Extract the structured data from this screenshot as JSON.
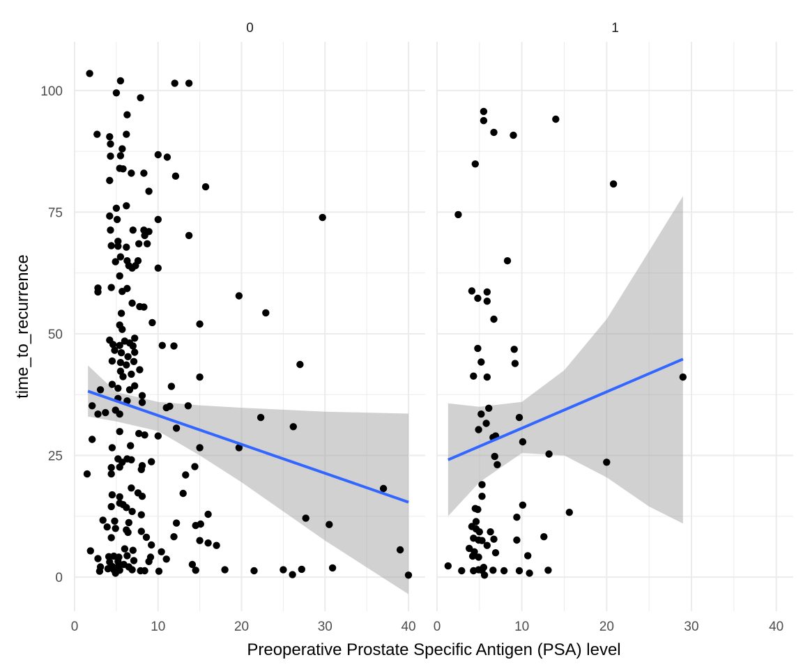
{
  "chart_data": {
    "type": "scatter",
    "xlabel": "Preoperative Prostate Specific Antigen (PSA) level",
    "ylabel": "time_to_recurrence",
    "xlim": [
      0,
      42
    ],
    "ylim": [
      -7,
      110
    ],
    "x_ticks": [
      0,
      10,
      20,
      30,
      40
    ],
    "y_ticks": [
      0,
      25,
      50,
      75,
      100
    ],
    "grid": true,
    "colors": {
      "points": "#000000",
      "fit_line": "#3366FF",
      "ribbon": "#999999",
      "grid": "#EBEBEB"
    },
    "panels": [
      {
        "label": "0",
        "fit": {
          "x_start": 1.6,
          "x_end": 40,
          "y_start": 38.2,
          "y_end": 15.4
        },
        "ribbon": {
          "x": [
            1.6,
            5,
            10,
            15,
            20,
            25,
            30,
            35,
            40
          ],
          "lower": [
            33,
            32,
            30,
            25,
            19.5,
            13.5,
            7.5,
            2,
            -3.5
          ],
          "upper": [
            43.5,
            38,
            36,
            35.3,
            34.8,
            34.4,
            34,
            33.8,
            33.6
          ]
        },
        "points": [
          [
            1.8,
            103.5
          ],
          [
            5.5,
            102
          ],
          [
            12,
            101.5
          ],
          [
            13.7,
            101.5
          ],
          [
            5,
            99.5
          ],
          [
            7.9,
            98.5
          ],
          [
            6.3,
            95
          ],
          [
            2.7,
            91
          ],
          [
            6.2,
            91
          ],
          [
            4.2,
            90.5
          ],
          [
            4.3,
            89
          ],
          [
            5.7,
            88
          ],
          [
            10,
            86.8
          ],
          [
            11.1,
            86.3
          ],
          [
            4.3,
            86.5
          ],
          [
            5.5,
            86.6
          ],
          [
            5.4,
            84
          ],
          [
            5.8,
            83.9
          ],
          [
            6.8,
            83
          ],
          [
            8.3,
            83
          ],
          [
            12.1,
            82.4
          ],
          [
            4.2,
            81.5
          ],
          [
            15.7,
            80.2
          ],
          [
            8.9,
            79.3
          ],
          [
            6.2,
            76.3
          ],
          [
            5,
            75.8
          ],
          [
            4.2,
            74.2
          ],
          [
            5.1,
            73.5
          ],
          [
            10,
            73.5
          ],
          [
            29.7,
            73.9
          ],
          [
            8.3,
            71.3
          ],
          [
            4.3,
            71.3
          ],
          [
            7,
            71.3
          ],
          [
            8.9,
            71
          ],
          [
            8.4,
            70.2
          ],
          [
            13.7,
            70.2
          ],
          [
            7.7,
            68.5
          ],
          [
            8.7,
            68.5
          ],
          [
            5.2,
            69
          ],
          [
            4.4,
            68.1
          ],
          [
            5.2,
            68
          ],
          [
            6.2,
            67.8
          ],
          [
            5.5,
            65.8
          ],
          [
            6.3,
            65
          ],
          [
            7.6,
            65
          ],
          [
            4.9,
            64.8
          ],
          [
            6.5,
            64
          ],
          [
            7.3,
            64
          ],
          [
            6.9,
            63.5
          ],
          [
            10,
            63.5
          ],
          [
            5.4,
            61.9
          ],
          [
            2.8,
            59.4
          ],
          [
            4.4,
            59.5
          ],
          [
            6.3,
            59.3
          ],
          [
            2.8,
            58.6
          ],
          [
            5.7,
            58.7
          ],
          [
            19.7,
            57.8
          ],
          [
            6.9,
            56.3
          ],
          [
            7.8,
            55.6
          ],
          [
            8.3,
            55.5
          ],
          [
            5.6,
            54.2
          ],
          [
            22.9,
            54.3
          ],
          [
            9.3,
            52.3
          ],
          [
            15,
            52
          ],
          [
            5.4,
            51.8
          ],
          [
            5.7,
            50.9
          ],
          [
            6.6,
            48.1
          ],
          [
            7.2,
            49.1
          ],
          [
            4.2,
            48.7
          ],
          [
            4.6,
            47.8
          ],
          [
            5.4,
            47.6
          ],
          [
            6,
            48.5
          ],
          [
            10.5,
            47.6
          ],
          [
            11.9,
            47.5
          ],
          [
            7,
            47.5
          ],
          [
            4.8,
            46.6
          ],
          [
            5.6,
            46.1
          ],
          [
            7.2,
            46.2
          ],
          [
            6.4,
            45.3
          ],
          [
            4.5,
            44.4
          ],
          [
            5.5,
            44.1
          ],
          [
            7.1,
            44.3
          ],
          [
            6.2,
            43.6
          ],
          [
            27,
            43.7
          ],
          [
            7.8,
            42.6
          ],
          [
            5.5,
            42.3
          ],
          [
            6.8,
            41.7
          ],
          [
            5.8,
            41.2
          ],
          [
            15,
            41.1
          ],
          [
            4.5,
            39.6
          ],
          [
            11.6,
            39.2
          ],
          [
            7.2,
            39.3
          ],
          [
            5.2,
            38.8
          ],
          [
            3.1,
            38.5
          ],
          [
            6.6,
            38.5
          ],
          [
            8.1,
            37.3
          ],
          [
            5.2,
            36.7
          ],
          [
            6.3,
            36.2
          ],
          [
            8.1,
            35.9
          ],
          [
            2.1,
            35.2
          ],
          [
            11.4,
            35.1
          ],
          [
            13.6,
            35.2
          ],
          [
            11,
            34.8
          ],
          [
            4.9,
            34.3
          ],
          [
            3.7,
            33.8
          ],
          [
            5.4,
            33.5
          ],
          [
            2.8,
            33.5
          ],
          [
            22.3,
            32.8
          ],
          [
            12.2,
            30.6
          ],
          [
            26.2,
            30.9
          ],
          [
            5.4,
            29.9
          ],
          [
            7.7,
            29.5
          ],
          [
            8.4,
            29.2
          ],
          [
            10,
            29
          ],
          [
            2.1,
            28.3
          ],
          [
            6.7,
            27
          ],
          [
            4.5,
            26.6
          ],
          [
            19.7,
            26.6
          ],
          [
            15,
            26.6
          ],
          [
            6.3,
            24.3
          ],
          [
            5.2,
            24.3
          ],
          [
            6.8,
            24.1
          ],
          [
            9.2,
            23.7
          ],
          [
            5.7,
            23.6
          ],
          [
            8.1,
            22.9
          ],
          [
            4.4,
            22.5
          ],
          [
            5.4,
            22.6
          ],
          [
            14.4,
            22.7
          ],
          [
            8,
            22.1
          ],
          [
            4.4,
            21.2
          ],
          [
            13.3,
            21
          ],
          [
            6.8,
            18.3
          ],
          [
            7.6,
            17.3
          ],
          [
            4.5,
            16.9
          ],
          [
            5.4,
            16.5
          ],
          [
            13,
            17.2
          ],
          [
            8.1,
            16.6
          ],
          [
            5.4,
            15.2
          ],
          [
            4.4,
            14.5
          ],
          [
            5.8,
            14.9
          ],
          [
            6.2,
            14.3
          ],
          [
            6.9,
            13.5
          ],
          [
            8,
            12.8
          ],
          [
            16,
            12.9
          ],
          [
            27.7,
            12.1
          ],
          [
            3.4,
            11.7
          ],
          [
            4.8,
            11.5
          ],
          [
            6.5,
            11.2
          ],
          [
            12.2,
            11.1
          ],
          [
            14.5,
            10.6
          ],
          [
            15.1,
            10.9
          ],
          [
            30.5,
            10.8
          ],
          [
            3.9,
            10.3
          ],
          [
            4.9,
            10
          ],
          [
            6.2,
            9.7
          ],
          [
            6.4,
            9.2
          ],
          [
            8,
            9.4
          ],
          [
            11.9,
            8.3
          ],
          [
            4.4,
            8.1
          ],
          [
            8.6,
            8.2
          ],
          [
            15,
            7.5
          ],
          [
            16,
            7
          ],
          [
            17,
            6.5
          ],
          [
            9.2,
            6.6
          ],
          [
            6,
            5.8
          ],
          [
            1.9,
            5.4
          ],
          [
            7,
            5.5
          ],
          [
            10.4,
            5.2
          ],
          [
            4.1,
            4.2
          ],
          [
            4.7,
            4.3
          ],
          [
            5.3,
            4.1
          ],
          [
            6.3,
            4.4
          ],
          [
            9.1,
            4.1
          ],
          [
            11,
            3.7
          ],
          [
            2.8,
            3.8
          ],
          [
            4.2,
            3.1
          ],
          [
            5.2,
            3.2
          ],
          [
            7.1,
            3.4
          ],
          [
            8.9,
            3.2
          ],
          [
            3.1,
            2.1
          ],
          [
            4.5,
            2.2
          ],
          [
            5.3,
            2.4
          ],
          [
            5.9,
            2.6
          ],
          [
            6.5,
            2.1
          ],
          [
            14.1,
            2.6
          ],
          [
            4,
            1.7
          ],
          [
            4.7,
            1.5
          ],
          [
            5.4,
            1.4
          ],
          [
            6.9,
            1.5
          ],
          [
            7.9,
            1.3
          ],
          [
            8.4,
            1.3
          ],
          [
            10.1,
            1.2
          ],
          [
            14.5,
            1.4
          ],
          [
            18,
            1.5
          ],
          [
            21.5,
            1.3
          ],
          [
            25,
            1.5
          ],
          [
            27.2,
            1.6
          ],
          [
            30.9,
            1.9
          ],
          [
            3,
            1.2
          ],
          [
            4.9,
            0.8
          ],
          [
            26.1,
            0.5
          ],
          [
            40,
            0.4
          ],
          [
            37,
            18.2
          ],
          [
            39,
            5.6
          ],
          [
            1.5,
            21.2
          ]
        ]
      },
      {
        "label": "1",
        "fit": {
          "x_start": 1.3,
          "x_end": 29,
          "y_start": 24.1,
          "y_end": 44.8
        },
        "ribbon": {
          "x": [
            1.3,
            5,
            10,
            15,
            20,
            25,
            29
          ],
          "lower": [
            12.5,
            19.5,
            25.5,
            25,
            20.5,
            14.5,
            11
          ],
          "upper": [
            35.7,
            35,
            36,
            42.5,
            53,
            67,
            78.3
          ]
        },
        "points": [
          [
            5.5,
            95.7
          ],
          [
            5.5,
            93.8
          ],
          [
            14,
            94.1
          ],
          [
            6.7,
            91.4
          ],
          [
            9,
            90.8
          ],
          [
            4.5,
            84.9
          ],
          [
            20.8,
            80.8
          ],
          [
            2.5,
            74.5
          ],
          [
            8.3,
            65
          ],
          [
            4.1,
            58.8
          ],
          [
            5.9,
            58.6
          ],
          [
            4.8,
            57.3
          ],
          [
            5.9,
            56.7
          ],
          [
            6.7,
            53
          ],
          [
            4.8,
            47
          ],
          [
            9.1,
            46.8
          ],
          [
            5.2,
            44.2
          ],
          [
            9.2,
            43.9
          ],
          [
            4.3,
            41.3
          ],
          [
            5.9,
            41.1
          ],
          [
            29,
            41.1
          ],
          [
            6.1,
            34.7
          ],
          [
            5.2,
            33.5
          ],
          [
            9.7,
            32.8
          ],
          [
            5.8,
            31.6
          ],
          [
            4.9,
            30.3
          ],
          [
            6.9,
            29
          ],
          [
            6.6,
            28.7
          ],
          [
            10.1,
            27.8
          ],
          [
            13.2,
            25.3
          ],
          [
            6.8,
            24.8
          ],
          [
            20,
            23.6
          ],
          [
            7.1,
            23.1
          ],
          [
            5.3,
            19
          ],
          [
            5.3,
            16.6
          ],
          [
            15.6,
            13.3
          ],
          [
            4.5,
            14.1
          ],
          [
            4.8,
            13.9
          ],
          [
            10.1,
            14.8
          ],
          [
            9.4,
            12.3
          ],
          [
            4.6,
            11.4
          ],
          [
            4.1,
            10.4
          ],
          [
            4.6,
            9.9
          ],
          [
            5,
            9.3
          ],
          [
            6.3,
            9.3
          ],
          [
            4.3,
            8
          ],
          [
            4.9,
            7.6
          ],
          [
            9.4,
            7.6
          ],
          [
            5.3,
            7.5
          ],
          [
            5.9,
            6.5
          ],
          [
            12.6,
            8.3
          ],
          [
            6.7,
            7.8
          ],
          [
            3.8,
            5.9
          ],
          [
            4.4,
            5.2
          ],
          [
            6.9,
            5
          ],
          [
            4.2,
            4.3
          ],
          [
            4.9,
            4.1
          ],
          [
            10.7,
            4.4
          ],
          [
            1.3,
            2.3
          ],
          [
            5.5,
            2
          ],
          [
            2.9,
            1.3
          ],
          [
            4.3,
            1.3
          ],
          [
            4.9,
            1.5
          ],
          [
            5.3,
            1.4
          ],
          [
            6.6,
            1.4
          ],
          [
            7.9,
            1.3
          ],
          [
            9.7,
            1.3
          ],
          [
            13.1,
            1.4
          ],
          [
            10.9,
            0.8
          ],
          [
            5.6,
            0.4
          ]
        ]
      }
    ]
  }
}
